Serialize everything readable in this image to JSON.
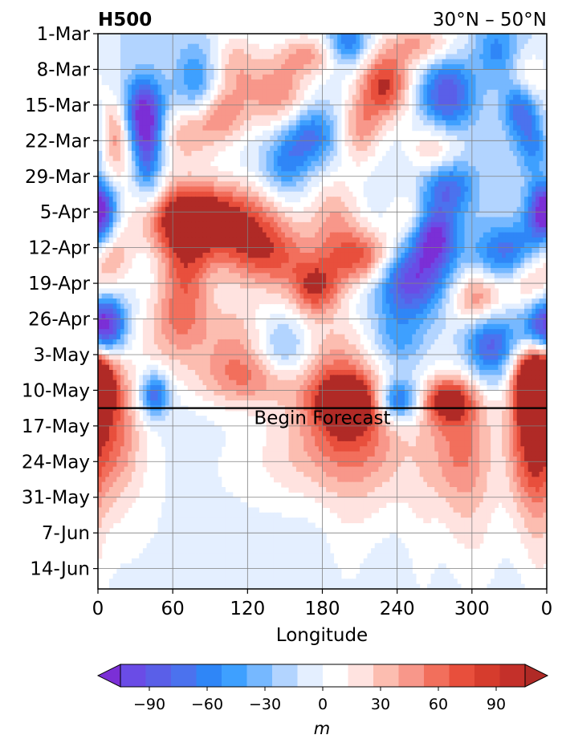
{
  "chart_data": {
    "type": "heatmap",
    "title_left": "H500",
    "title_right": "30°N – 50°N",
    "xlabel": "Longitude",
    "x_ticks": [
      "0",
      "60",
      "120",
      "180",
      "240",
      "300",
      "0"
    ],
    "x_tick_values": [
      0,
      60,
      120,
      180,
      240,
      300,
      360
    ],
    "xlim": [
      0,
      360
    ],
    "y_ticks": [
      "1-Mar",
      "8-Mar",
      "15-Mar",
      "22-Mar",
      "29-Mar",
      "5-Apr",
      "12-Apr",
      "19-Apr",
      "26-Apr",
      "3-May",
      "10-May",
      "17-May",
      "24-May",
      "31-May",
      "7-Jun",
      "14-Jun"
    ],
    "ylim_days": [
      0,
      109
    ],
    "grid": true,
    "annotation": {
      "text": "Begin Forecast",
      "day": 73.5
    },
    "colorbar": {
      "label": "m",
      "ticks": [
        "−90",
        "−60",
        "−30",
        "0",
        "30",
        "60",
        "90"
      ],
      "tick_values": [
        -90,
        -60,
        -30,
        0,
        30,
        60,
        90
      ],
      "levels": [
        -105,
        -90,
        -75,
        -60,
        -45,
        -30,
        -15,
        0,
        15,
        30,
        45,
        60,
        75,
        90,
        105
      ],
      "colors": [
        "#7b2fd6",
        "#6a4ce6",
        "#5a5fe8",
        "#4b72ee",
        "#2f86f7",
        "#3ea0ff",
        "#76b8ff",
        "#b2d4ff",
        "#e4efff",
        "#ffffff",
        "#ffe3e0",
        "#fcbdb0",
        "#f8978a",
        "#f26f5c",
        "#e84f3c",
        "#d63c2d",
        "#c4302a",
        "#b02a26"
      ],
      "extend": "both"
    },
    "blobs": [
      {
        "lon": 15,
        "day": 20,
        "val": 80,
        "rl": 10,
        "rd": 6
      },
      {
        "lon": 35,
        "day": 16,
        "val": -110,
        "rl": 12,
        "rd": 5
      },
      {
        "lon": 40,
        "day": 24,
        "val": -70,
        "rl": 8,
        "rd": 7
      },
      {
        "lon": 80,
        "day": 9,
        "val": -50,
        "rl": 12,
        "rd": 5
      },
      {
        "lon": 70,
        "day": 20,
        "val": 55,
        "rl": 18,
        "rd": 4
      },
      {
        "lon": 110,
        "day": 6,
        "val": 50,
        "rl": 15,
        "rd": 5
      },
      {
        "lon": 100,
        "day": 16,
        "val": 60,
        "rl": 15,
        "rd": 4
      },
      {
        "lon": 145,
        "day": 12,
        "val": 70,
        "rl": 18,
        "rd": 5
      },
      {
        "lon": 170,
        "day": 4,
        "val": 60,
        "rl": 18,
        "rd": 3
      },
      {
        "lon": 170,
        "day": 20,
        "val": -70,
        "rl": 15,
        "rd": 4
      },
      {
        "lon": 150,
        "day": 26,
        "val": -50,
        "rl": 12,
        "rd": 4
      },
      {
        "lon": 210,
        "day": 19,
        "val": 60,
        "rl": 12,
        "rd": 5
      },
      {
        "lon": 200,
        "day": 2,
        "val": -70,
        "rl": 12,
        "rd": 3
      },
      {
        "lon": 230,
        "day": 10,
        "val": 105,
        "rl": 15,
        "rd": 5
      },
      {
        "lon": 260,
        "day": 2,
        "val": 60,
        "rl": 20,
        "rd": 3
      },
      {
        "lon": 280,
        "day": 12,
        "val": -90,
        "rl": 15,
        "rd": 5
      },
      {
        "lon": 270,
        "day": 23,
        "val": 55,
        "rl": 15,
        "rd": 4
      },
      {
        "lon": 320,
        "day": 3,
        "val": -50,
        "rl": 12,
        "rd": 4
      },
      {
        "lon": 345,
        "day": 10,
        "val": 60,
        "rl": 10,
        "rd": 4
      },
      {
        "lon": 340,
        "day": 14,
        "val": -90,
        "rl": 10,
        "rd": 4
      },
      {
        "lon": 350,
        "day": 22,
        "val": -50,
        "rl": 10,
        "rd": 4
      },
      {
        "lon": 0,
        "day": 35,
        "val": -75,
        "rl": 10,
        "rd": 4
      },
      {
        "lon": 360,
        "day": 35,
        "val": -75,
        "rl": 10,
        "rd": 4
      },
      {
        "lon": 75,
        "day": 36,
        "val": 120,
        "rl": 30,
        "rd": 5
      },
      {
        "lon": 120,
        "day": 38,
        "val": 60,
        "rl": 25,
        "rd": 6
      },
      {
        "lon": 10,
        "day": 44,
        "val": 60,
        "rl": 12,
        "rd": 5
      },
      {
        "lon": 70,
        "day": 46,
        "val": 75,
        "rl": 15,
        "rd": 8
      },
      {
        "lon": 190,
        "day": 36,
        "val": 55,
        "rl": 15,
        "rd": 6
      },
      {
        "lon": 215,
        "day": 44,
        "val": 95,
        "rl": 20,
        "rd": 4
      },
      {
        "lon": 250,
        "day": 36,
        "val": 40,
        "rl": 12,
        "rd": 4
      },
      {
        "lon": 270,
        "day": 40,
        "val": -110,
        "rl": 12,
        "rd": 4
      },
      {
        "lon": 280,
        "day": 30,
        "val": -80,
        "rl": 15,
        "rd": 4
      },
      {
        "lon": 250,
        "day": 48,
        "val": -110,
        "rl": 20,
        "rd": 5
      },
      {
        "lon": 330,
        "day": 43,
        "val": -75,
        "rl": 20,
        "rd": 4
      },
      {
        "lon": 345,
        "day": 48,
        "val": 55,
        "rl": 12,
        "rd": 4
      },
      {
        "lon": 305,
        "day": 52,
        "val": 80,
        "rl": 15,
        "rd": 4
      },
      {
        "lon": 140,
        "day": 44,
        "val": 70,
        "rl": 25,
        "rd": 5
      },
      {
        "lon": 175,
        "day": 50,
        "val": 90,
        "rl": 15,
        "rd": 4
      },
      {
        "lon": 10,
        "day": 57,
        "val": -85,
        "rl": 10,
        "rd": 4
      },
      {
        "lon": 60,
        "day": 58,
        "val": 50,
        "rl": 20,
        "rd": 6
      },
      {
        "lon": 110,
        "day": 60,
        "val": 50,
        "rl": 20,
        "rd": 6
      },
      {
        "lon": 150,
        "day": 62,
        "val": -45,
        "rl": 15,
        "rd": 4
      },
      {
        "lon": 120,
        "day": 68,
        "val": 55,
        "rl": 30,
        "rd": 4
      },
      {
        "lon": 190,
        "day": 63,
        "val": 50,
        "rl": 25,
        "rd": 6
      },
      {
        "lon": 240,
        "day": 60,
        "val": -40,
        "rl": 15,
        "rd": 4
      },
      {
        "lon": 315,
        "day": 61,
        "val": -90,
        "rl": 15,
        "rd": 5
      },
      {
        "lon": 355,
        "day": 58,
        "val": -100,
        "rl": 12,
        "rd": 4
      },
      {
        "lon": 350,
        "day": 68,
        "val": 95,
        "rl": 12,
        "rd": 5
      },
      {
        "lon": 0,
        "day": 68,
        "val": 70,
        "rl": 12,
        "rd": 5
      },
      {
        "lon": 45,
        "day": 71,
        "val": -90,
        "rl": 8,
        "rd": 3
      },
      {
        "lon": 200,
        "day": 72,
        "val": 100,
        "rl": 20,
        "rd": 4
      },
      {
        "lon": 240,
        "day": 72,
        "val": -100,
        "rl": 12,
        "rd": 3
      },
      {
        "lon": 280,
        "day": 72,
        "val": 90,
        "rl": 15,
        "rd": 3
      },
      {
        "lon": 10,
        "day": 78,
        "val": 75,
        "rl": 18,
        "rd": 10
      },
      {
        "lon": 200,
        "day": 78,
        "val": 60,
        "rl": 30,
        "rd": 7
      },
      {
        "lon": 160,
        "day": 84,
        "val": 30,
        "rl": 40,
        "rd": 8
      },
      {
        "lon": 230,
        "day": 86,
        "val": 25,
        "rl": 25,
        "rd": 10
      },
      {
        "lon": 290,
        "day": 80,
        "val": 70,
        "rl": 20,
        "rd": 10
      },
      {
        "lon": 345,
        "day": 78,
        "val": 80,
        "rl": 12,
        "rd": 12
      },
      {
        "lon": 300,
        "day": 98,
        "val": 20,
        "rl": 15,
        "rd": 12
      },
      {
        "lon": 30,
        "day": 96,
        "val": 14,
        "rl": 60,
        "rd": 20
      },
      {
        "lon": 200,
        "day": 100,
        "val": 15,
        "rl": 15,
        "rd": 15
      },
      {
        "lon": 260,
        "day": 102,
        "val": 14,
        "rl": 10,
        "rd": 15
      },
      {
        "lon": 355,
        "day": 98,
        "val": 16,
        "rl": 8,
        "rd": 15
      }
    ]
  }
}
